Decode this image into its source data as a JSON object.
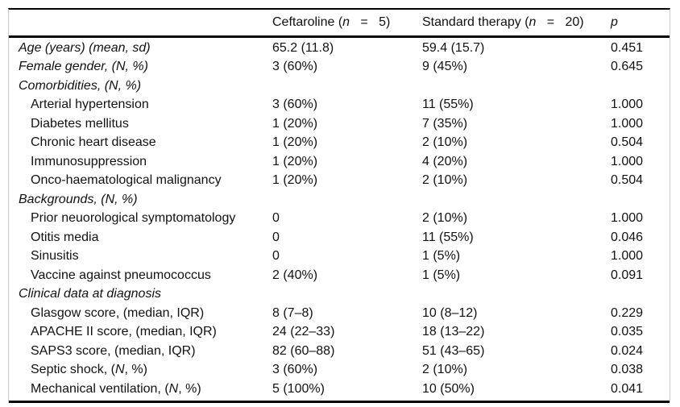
{
  "page": {
    "background_color": "#ffffff",
    "rule_color": "#000000",
    "side_border_color": "#cccccc",
    "text_color": "#111111"
  },
  "table": {
    "header": {
      "row_label_column": "",
      "ceftaroline_html": "Ceftaroline (<i>n</i>   =   5)",
      "standard_html": "Standard therapy (<i>n</i>   =   20)",
      "p_html": "<i>p</i>"
    },
    "rows": [
      {
        "label_html": "Age (years) (mean, sd)",
        "italic": true,
        "indent": false,
        "section": false,
        "ceftaroline": "65.2 (11.8)",
        "standard": "59.4 (15.7)",
        "p": "0.451"
      },
      {
        "label_html": "Female gender, (N, %)",
        "italic": true,
        "indent": false,
        "section": false,
        "ceftaroline": "3 (60%)",
        "standard": "9 (45%)",
        "p": "0.645"
      },
      {
        "label_html": "Comorbidities, (N, %)",
        "italic": true,
        "indent": false,
        "section": true,
        "ceftaroline": "",
        "standard": "",
        "p": ""
      },
      {
        "label_html": "Arterial hypertension",
        "italic": false,
        "indent": true,
        "section": false,
        "ceftaroline": "3 (60%)",
        "standard": "11 (55%)",
        "p": "1.000"
      },
      {
        "label_html": "Diabetes mellitus",
        "italic": false,
        "indent": true,
        "section": false,
        "ceftaroline": "1 (20%)",
        "standard": "7 (35%)",
        "p": "1.000"
      },
      {
        "label_html": "Chronic heart disease",
        "italic": false,
        "indent": true,
        "section": false,
        "ceftaroline": "1 (20%)",
        "standard": "2 (10%)",
        "p": "0.504"
      },
      {
        "label_html": "Immunosuppression",
        "italic": false,
        "indent": true,
        "section": false,
        "ceftaroline": "1 (20%)",
        "standard": "4 (20%)",
        "p": "1.000"
      },
      {
        "label_html": "Onco-haematological malignancy",
        "italic": false,
        "indent": true,
        "section": false,
        "ceftaroline": "1 (20%)",
        "standard": "2 (10%)",
        "p": "0.504"
      },
      {
        "label_html": "Backgrounds, (N, %)",
        "italic": true,
        "indent": false,
        "section": true,
        "ceftaroline": "",
        "standard": "",
        "p": ""
      },
      {
        "label_html": "Prior neuorological symptomatology",
        "italic": false,
        "indent": true,
        "section": false,
        "ceftaroline": "0",
        "standard": "2 (10%)",
        "p": "1.000"
      },
      {
        "label_html": "Otitis media",
        "italic": false,
        "indent": true,
        "section": false,
        "ceftaroline": "0",
        "standard": "11 (55%)",
        "p": "0.046"
      },
      {
        "label_html": "Sinusitis",
        "italic": false,
        "indent": true,
        "section": false,
        "ceftaroline": "0",
        "standard": "1 (5%)",
        "p": "1.000"
      },
      {
        "label_html": "Vaccine against pneumococcus",
        "italic": false,
        "indent": true,
        "section": false,
        "ceftaroline": "2 (40%)",
        "standard": "1 (5%)",
        "p": "0.091"
      },
      {
        "label_html": "Clinical data at diagnosis",
        "italic": true,
        "indent": false,
        "section": true,
        "ceftaroline": "",
        "standard": "",
        "p": ""
      },
      {
        "label_html": "Glasgow score, (median, IQR)",
        "italic": false,
        "indent": true,
        "section": false,
        "ceftaroline": "8 (7–8)",
        "standard": "10 (8–12)",
        "p": "0.229"
      },
      {
        "label_html": "APACHE II score, (median, IQR)",
        "italic": false,
        "indent": true,
        "section": false,
        "ceftaroline": "24 (22–33)",
        "standard": "18 (13–22)",
        "p": "0.035"
      },
      {
        "label_html": "SAPS3 score, (median, IQR)",
        "italic": false,
        "indent": true,
        "section": false,
        "ceftaroline": "82 (60–88)",
        "standard": "51 (43–65)",
        "p": "0.024"
      },
      {
        "label_html": "Septic shock, (<i>N</i>, %)",
        "italic": false,
        "indent": true,
        "section": false,
        "ceftaroline": "3 (60%)",
        "standard": "2 (10%)",
        "p": "0.038"
      },
      {
        "label_html": "Mechanical ventilation, (<i>N</i>, %)",
        "italic": false,
        "indent": true,
        "section": false,
        "ceftaroline": "5 (100%)",
        "standard": "10 (50%)",
        "p": "0.041"
      }
    ]
  }
}
